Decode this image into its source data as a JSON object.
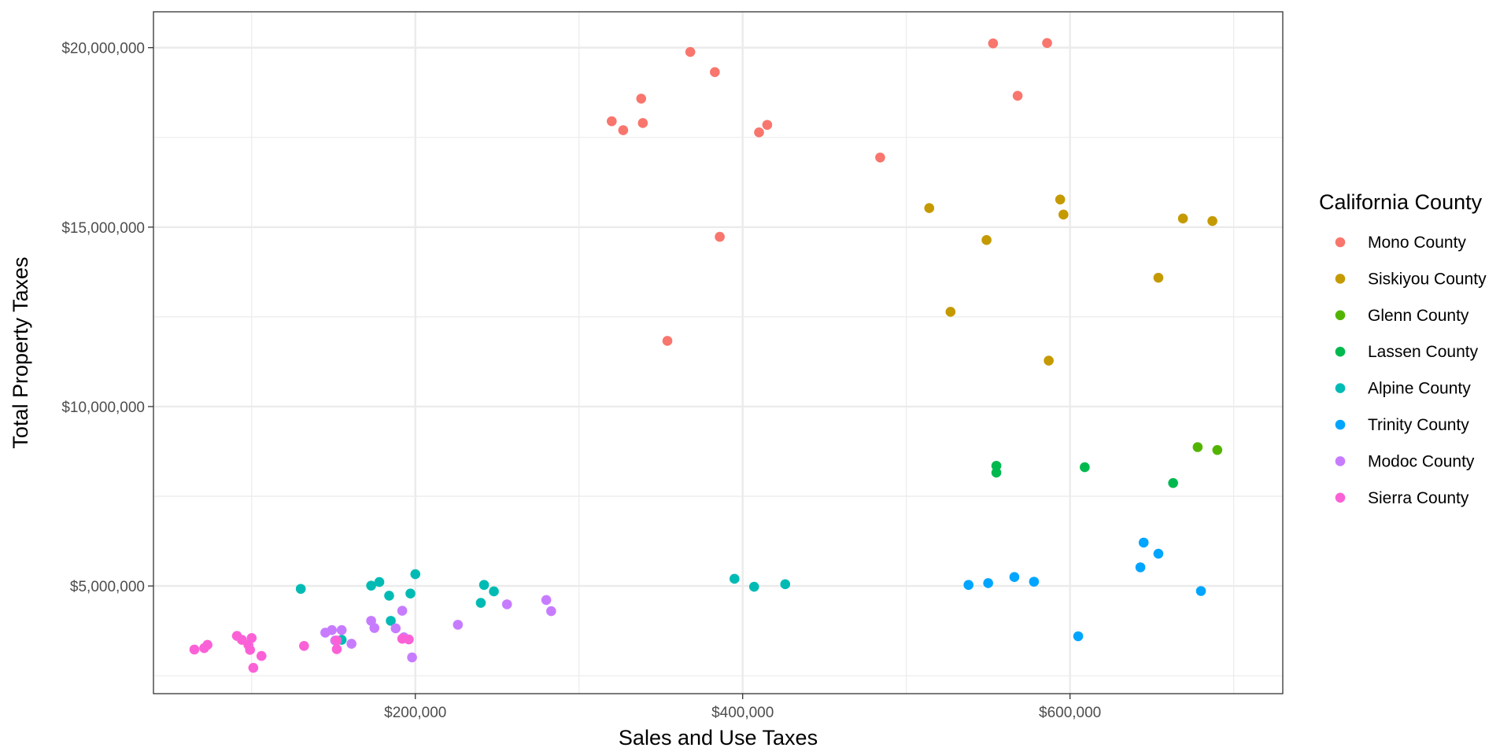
{
  "chart_data": {
    "type": "scatter",
    "title": "",
    "xlabel": "Sales and Use Taxes",
    "ylabel": "Total Property Taxes",
    "xlim": [
      40000,
      730000
    ],
    "ylim": [
      2000000,
      21000000
    ],
    "x_ticks": [
      {
        "value": 200000,
        "label": "$200,000"
      },
      {
        "value": 400000,
        "label": "$400,000"
      },
      {
        "value": 600000,
        "label": "$600,000"
      }
    ],
    "y_ticks": [
      {
        "value": 5000000,
        "label": "$5,000,000"
      },
      {
        "value": 10000000,
        "label": "$10,000,000"
      },
      {
        "value": 15000000,
        "label": "$15,000,000"
      },
      {
        "value": 20000000,
        "label": "$20,000,000"
      }
    ],
    "x_minor": [
      100000,
      300000,
      500000,
      700000
    ],
    "y_minor": [
      2500000,
      7500000,
      12500000,
      17500000
    ],
    "grid": true,
    "legend": {
      "title": "California County",
      "placement": "right"
    },
    "series": [
      {
        "name": "Mono County",
        "color": "#F8766D",
        "points": [
          [
            320000,
            17950000
          ],
          [
            327000,
            17700000
          ],
          [
            338000,
            18580000
          ],
          [
            339000,
            17900000
          ],
          [
            368000,
            19880000
          ],
          [
            383000,
            19320000
          ],
          [
            386000,
            14730000
          ],
          [
            410000,
            17640000
          ],
          [
            415000,
            17850000
          ],
          [
            484000,
            16940000
          ],
          [
            553000,
            20120000
          ],
          [
            568000,
            18660000
          ],
          [
            586000,
            20130000
          ],
          [
            354000,
            11830000
          ]
        ]
      },
      {
        "name": "Siskiyou County",
        "color": "#C49A00",
        "points": [
          [
            514000,
            15530000
          ],
          [
            527000,
            12640000
          ],
          [
            549000,
            14640000
          ],
          [
            587000,
            11280000
          ],
          [
            594000,
            15770000
          ],
          [
            596000,
            15350000
          ],
          [
            654000,
            13590000
          ],
          [
            669000,
            15240000
          ],
          [
            687000,
            15170000
          ]
        ]
      },
      {
        "name": "Glenn County",
        "color": "#53B400",
        "points": [
          [
            678000,
            8870000
          ],
          [
            690000,
            8790000
          ]
        ]
      },
      {
        "name": "Lassen County",
        "color": "#00B94E",
        "points": [
          [
            555000,
            8350000
          ],
          [
            555000,
            8160000
          ],
          [
            609000,
            8310000
          ],
          [
            663000,
            7870000
          ]
        ]
      },
      {
        "name": "Alpine County",
        "color": "#00BBB4",
        "points": [
          [
            130000,
            4920000
          ],
          [
            155000,
            3500000
          ],
          [
            173000,
            5010000
          ],
          [
            178000,
            5110000
          ],
          [
            184000,
            4730000
          ],
          [
            185000,
            4030000
          ],
          [
            197000,
            4790000
          ],
          [
            200000,
            5330000
          ],
          [
            240000,
            4530000
          ],
          [
            242000,
            5030000
          ],
          [
            248000,
            4850000
          ],
          [
            395000,
            5200000
          ],
          [
            407000,
            4980000
          ],
          [
            426000,
            5050000
          ]
        ]
      },
      {
        "name": "Trinity County",
        "color": "#00A5FF",
        "points": [
          [
            538000,
            5030000
          ],
          [
            550000,
            5080000
          ],
          [
            566000,
            5250000
          ],
          [
            578000,
            5120000
          ],
          [
            605000,
            3600000
          ],
          [
            643000,
            5520000
          ],
          [
            645000,
            6210000
          ],
          [
            654000,
            5900000
          ],
          [
            680000,
            4860000
          ]
        ]
      },
      {
        "name": "Modoc County",
        "color": "#C77CFF",
        "points": [
          [
            145000,
            3700000
          ],
          [
            149000,
            3770000
          ],
          [
            151000,
            3480000
          ],
          [
            155000,
            3770000
          ],
          [
            161000,
            3390000
          ],
          [
            173000,
            4030000
          ],
          [
            175000,
            3830000
          ],
          [
            188000,
            3820000
          ],
          [
            192000,
            4310000
          ],
          [
            193000,
            3570000
          ],
          [
            198000,
            3010000
          ],
          [
            226000,
            3920000
          ],
          [
            256000,
            4490000
          ],
          [
            280000,
            4610000
          ],
          [
            283000,
            4300000
          ]
        ]
      },
      {
        "name": "Sierra County",
        "color": "#FB61D7",
        "points": [
          [
            65000,
            3230000
          ],
          [
            71000,
            3270000
          ],
          [
            73000,
            3360000
          ],
          [
            91000,
            3610000
          ],
          [
            94000,
            3500000
          ],
          [
            98000,
            3360000
          ],
          [
            99000,
            3220000
          ],
          [
            100000,
            3550000
          ],
          [
            101000,
            2720000
          ],
          [
            106000,
            3050000
          ],
          [
            132000,
            3330000
          ],
          [
            152000,
            3480000
          ],
          [
            152000,
            3240000
          ],
          [
            192000,
            3530000
          ],
          [
            196000,
            3510000
          ]
        ]
      }
    ]
  }
}
